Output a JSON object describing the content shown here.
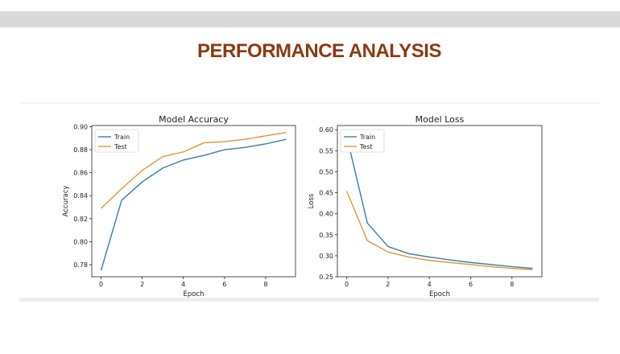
{
  "page": {
    "title": "PERFORMANCE ANALYSIS"
  },
  "colors": {
    "train": "#3a7ea6",
    "test": "#e1962f",
    "title": "#8b3a0f"
  },
  "chart_data": [
    {
      "type": "line",
      "title": "Model Accuracy",
      "xlabel": "Epoch",
      "ylabel": "Accuracy",
      "x": [
        0,
        1,
        2,
        3,
        4,
        5,
        6,
        7,
        8,
        9
      ],
      "xlim": [
        -0.45,
        9.45
      ],
      "ylim": [
        0.7695,
        0.901
      ],
      "xticks": [
        0,
        2,
        4,
        6,
        8
      ],
      "yticks": [
        0.78,
        0.8,
        0.82,
        0.84,
        0.86,
        0.88,
        0.9
      ],
      "ytick_labels": [
        "0.78",
        "0.80",
        "0.82",
        "0.84",
        "0.86",
        "0.88",
        "0.90"
      ],
      "legend_position": "upper left",
      "series": [
        {
          "name": "Train",
          "values": [
            0.775,
            0.836,
            0.852,
            0.864,
            0.871,
            0.875,
            0.88,
            0.882,
            0.885,
            0.889
          ]
        },
        {
          "name": "Test",
          "values": [
            0.829,
            0.846,
            0.862,
            0.874,
            0.878,
            0.886,
            0.887,
            0.889,
            0.892,
            0.895
          ]
        }
      ]
    },
    {
      "type": "line",
      "title": "Model Loss",
      "xlabel": "Epoch",
      "ylabel": "Loss",
      "x": [
        0,
        1,
        2,
        3,
        4,
        5,
        6,
        7,
        8,
        9
      ],
      "xlim": [
        -0.45,
        9.45
      ],
      "ylim": [
        0.25,
        0.61
      ],
      "xticks": [
        0,
        2,
        4,
        6,
        8
      ],
      "yticks": [
        0.25,
        0.3,
        0.35,
        0.4,
        0.45,
        0.5,
        0.55,
        0.6
      ],
      "ytick_labels": [
        "0.25",
        "0.30",
        "0.35",
        "0.40",
        "0.45",
        "0.50",
        "0.55",
        "0.60"
      ],
      "legend_position": "upper left",
      "series": [
        {
          "name": "Train",
          "values": [
            0.585,
            0.378,
            0.322,
            0.305,
            0.297,
            0.29,
            0.284,
            0.279,
            0.274,
            0.27
          ]
        },
        {
          "name": "Test",
          "values": [
            0.454,
            0.336,
            0.309,
            0.297,
            0.289,
            0.284,
            0.279,
            0.274,
            0.27,
            0.267
          ]
        }
      ]
    }
  ]
}
